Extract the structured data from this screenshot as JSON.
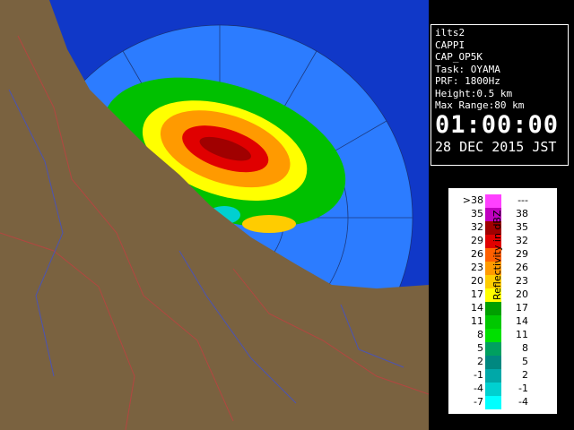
{
  "info": {
    "lines": [
      "ilts2",
      "CAPPI",
      "CAP_OP5K",
      "Task: OYAMA",
      "PRF: 1800Hz",
      "Height:0.5 km",
      "Max Range:80 km"
    ],
    "time": "01:00:00",
    "date": "28 DEC 2015 JST"
  },
  "legend": {
    "title": "Reflectivity in dBZ",
    "rows": [
      {
        "low": ">38",
        "high": "---",
        "color": "#ff40ff"
      },
      {
        "low": "35",
        "high": "38",
        "color": "#c000c0"
      },
      {
        "low": "32",
        "high": "35",
        "color": "#a00000"
      },
      {
        "low": "29",
        "high": "32",
        "color": "#e00000"
      },
      {
        "low": "26",
        "high": "29",
        "color": "#ff6000"
      },
      {
        "low": "23",
        "high": "26",
        "color": "#ff9a00"
      },
      {
        "low": "20",
        "high": "23",
        "color": "#ffcc00"
      },
      {
        "low": "17",
        "high": "20",
        "color": "#ffff00"
      },
      {
        "low": "14",
        "high": "17",
        "color": "#00a000"
      },
      {
        "low": "11",
        "high": "14",
        "color": "#00c800"
      },
      {
        "low": "8",
        "high": "11",
        "color": "#00e000"
      },
      {
        "low": "5",
        "high": "8",
        "color": "#00a060"
      },
      {
        "low": "2",
        "high": "5",
        "color": "#008880"
      },
      {
        "low": "-1",
        "high": "2",
        "color": "#00a8a8"
      },
      {
        "low": "-4",
        "high": "-1",
        "color": "#00d0d0"
      },
      {
        "low": "-7",
        "high": "-4",
        "color": "#00ffff"
      }
    ]
  }
}
